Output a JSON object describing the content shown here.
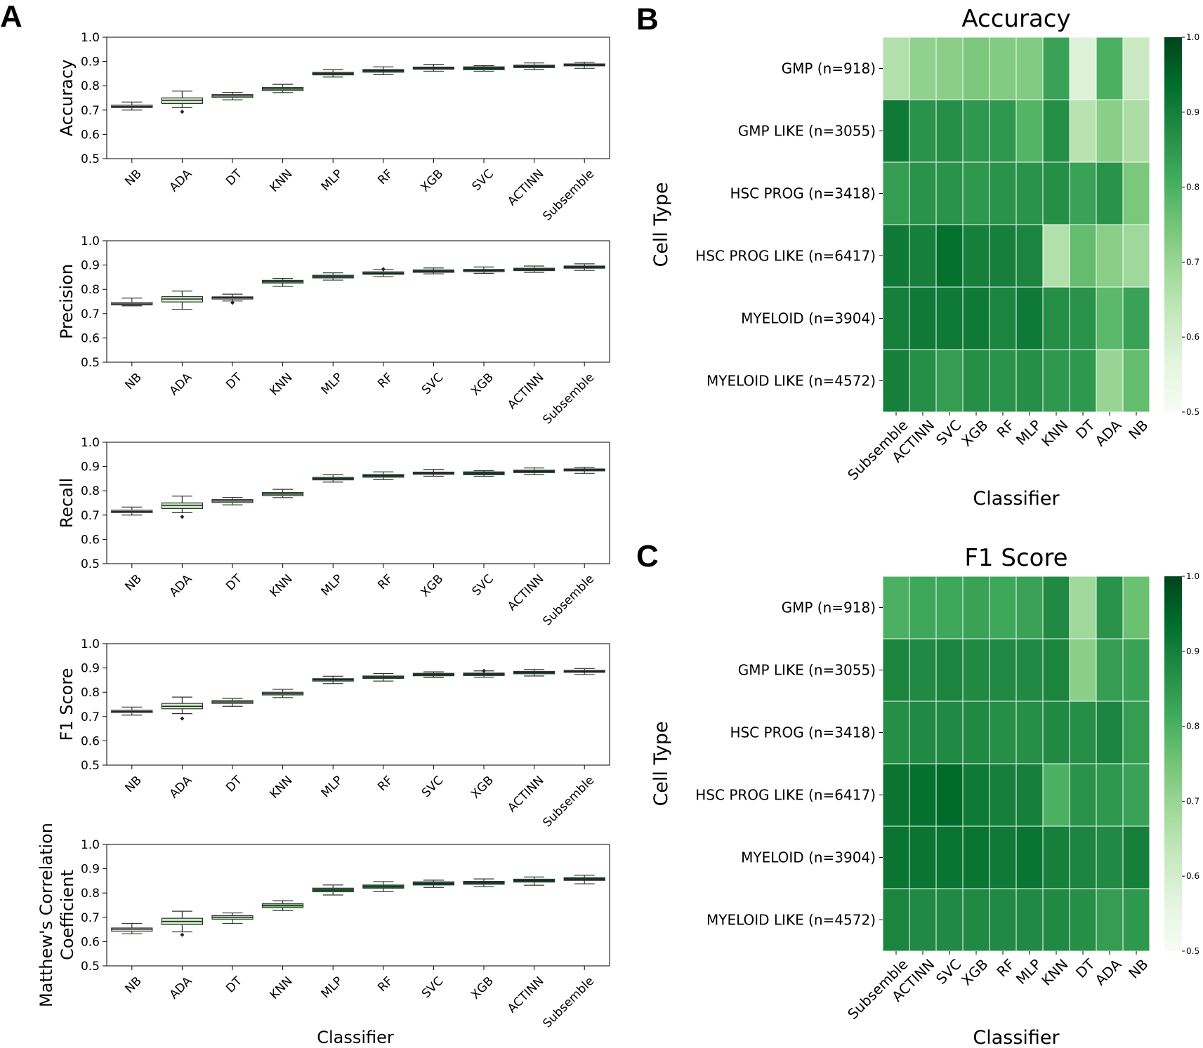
{
  "panel_labels": {
    "a": "A",
    "b": "B",
    "c": "C"
  },
  "colors": {
    "cmap_low": "#f7fcf5",
    "cmap_high": "#00441b",
    "box_edge": "#333333"
  },
  "chart_data": [
    {
      "type": "box",
      "ylabel": "Accuracy",
      "ylim": [
        0.5,
        1.0
      ],
      "yticks": [
        "0.5",
        "0.6",
        "0.7",
        "0.8",
        "0.9",
        "1.0"
      ],
      "categories": [
        "NB",
        "ADA",
        "DT",
        "KNN",
        "MLP",
        "RF",
        "XGB",
        "SVC",
        "ACTINN",
        "Subsemble"
      ],
      "medians": [
        0.715,
        0.74,
        0.758,
        0.787,
        0.85,
        0.862,
        0.873,
        0.873,
        0.88,
        0.886
      ],
      "q1": [
        0.71,
        0.727,
        0.752,
        0.78,
        0.845,
        0.856,
        0.868,
        0.866,
        0.875,
        0.882
      ],
      "q3": [
        0.72,
        0.75,
        0.764,
        0.793,
        0.855,
        0.867,
        0.877,
        0.878,
        0.885,
        0.89
      ],
      "whisker_low": [
        0.7,
        0.71,
        0.742,
        0.772,
        0.836,
        0.846,
        0.86,
        0.86,
        0.866,
        0.872
      ],
      "whisker_high": [
        0.733,
        0.778,
        0.773,
        0.806,
        0.866,
        0.878,
        0.888,
        0.883,
        0.894,
        0.897
      ],
      "outliers": [
        [],
        [
          0.693
        ],
        [],
        [],
        [],
        [],
        [],
        [],
        [],
        []
      ]
    },
    {
      "type": "box",
      "ylabel": "Precision",
      "ylim": [
        0.5,
        1.0
      ],
      "yticks": [
        "0.5",
        "0.6",
        "0.7",
        "0.8",
        "0.9",
        "1.0"
      ],
      "categories": [
        "NB",
        "ADA",
        "DT",
        "KNN",
        "MLP",
        "RF",
        "SVC",
        "XGB",
        "ACTINN",
        "Subsemble"
      ],
      "medians": [
        0.74,
        0.76,
        0.765,
        0.832,
        0.852,
        0.866,
        0.875,
        0.878,
        0.882,
        0.892
      ],
      "q1": [
        0.736,
        0.748,
        0.76,
        0.826,
        0.847,
        0.862,
        0.87,
        0.873,
        0.877,
        0.887
      ],
      "q3": [
        0.746,
        0.77,
        0.769,
        0.837,
        0.858,
        0.872,
        0.88,
        0.882,
        0.887,
        0.896
      ],
      "whisker_low": [
        0.732,
        0.718,
        0.752,
        0.812,
        0.838,
        0.852,
        0.864,
        0.866,
        0.87,
        0.878
      ],
      "whisker_high": [
        0.764,
        0.793,
        0.78,
        0.845,
        0.868,
        0.882,
        0.888,
        0.892,
        0.896,
        0.905
      ],
      "outliers": [
        [],
        [],
        [
          0.745
        ],
        [],
        [],
        [
          0.883
        ],
        [],
        [],
        [],
        []
      ]
    },
    {
      "type": "box",
      "ylabel": "Recall",
      "ylim": [
        0.5,
        1.0
      ],
      "yticks": [
        "0.5",
        "0.6",
        "0.7",
        "0.8",
        "0.9",
        "1.0"
      ],
      "categories": [
        "NB",
        "ADA",
        "DT",
        "KNN",
        "MLP",
        "RF",
        "XGB",
        "SVC",
        "ACTINN",
        "Subsemble"
      ],
      "medians": [
        0.715,
        0.74,
        0.758,
        0.787,
        0.85,
        0.862,
        0.873,
        0.873,
        0.88,
        0.886
      ],
      "q1": [
        0.71,
        0.727,
        0.752,
        0.78,
        0.845,
        0.856,
        0.868,
        0.866,
        0.875,
        0.882
      ],
      "q3": [
        0.72,
        0.75,
        0.764,
        0.793,
        0.855,
        0.867,
        0.877,
        0.878,
        0.885,
        0.89
      ],
      "whisker_low": [
        0.7,
        0.71,
        0.742,
        0.772,
        0.836,
        0.846,
        0.86,
        0.86,
        0.866,
        0.872
      ],
      "whisker_high": [
        0.733,
        0.778,
        0.773,
        0.806,
        0.866,
        0.878,
        0.888,
        0.883,
        0.894,
        0.897
      ],
      "outliers": [
        [],
        [
          0.693
        ],
        [],
        [],
        [],
        [],
        [],
        [],
        [],
        []
      ]
    },
    {
      "type": "box",
      "ylabel": "F1 Score",
      "ylim": [
        0.5,
        1.0
      ],
      "yticks": [
        "0.5",
        "0.6",
        "0.7",
        "0.8",
        "0.9",
        "1.0"
      ],
      "categories": [
        "NB",
        "ADA",
        "DT",
        "KNN",
        "MLP",
        "RF",
        "SVC",
        "XGB",
        "ACTINN",
        "Subsemble"
      ],
      "medians": [
        0.721,
        0.742,
        0.76,
        0.795,
        0.852,
        0.862,
        0.873,
        0.875,
        0.881,
        0.886
      ],
      "q1": [
        0.716,
        0.732,
        0.754,
        0.789,
        0.846,
        0.857,
        0.868,
        0.869,
        0.876,
        0.882
      ],
      "q3": [
        0.726,
        0.754,
        0.766,
        0.8,
        0.856,
        0.867,
        0.878,
        0.879,
        0.886,
        0.89
      ],
      "whisker_low": [
        0.706,
        0.712,
        0.742,
        0.778,
        0.836,
        0.846,
        0.861,
        0.862,
        0.867,
        0.873
      ],
      "whisker_high": [
        0.739,
        0.78,
        0.775,
        0.812,
        0.866,
        0.877,
        0.884,
        0.888,
        0.894,
        0.898
      ],
      "outliers": [
        [],
        [
          0.692
        ],
        [],
        [],
        [],
        [],
        [],
        [
          0.888
        ],
        [],
        []
      ]
    },
    {
      "type": "box",
      "ylabel_lines": [
        "Matthew's Correlation",
        "Coefficient"
      ],
      "xlabel": "Classifier",
      "ylim": [
        0.5,
        1.0
      ],
      "yticks": [
        "0.5",
        "0.6",
        "0.7",
        "0.8",
        "0.9",
        "1.0"
      ],
      "categories": [
        "NB",
        "ADA",
        "DT",
        "KNN",
        "MLP",
        "RF",
        "SVC",
        "XGB",
        "ACTINN",
        "Subsemble"
      ],
      "medians": [
        0.651,
        0.683,
        0.7,
        0.748,
        0.812,
        0.826,
        0.839,
        0.842,
        0.851,
        0.858
      ],
      "q1": [
        0.643,
        0.67,
        0.692,
        0.74,
        0.805,
        0.82,
        0.833,
        0.836,
        0.845,
        0.852
      ],
      "q3": [
        0.656,
        0.696,
        0.707,
        0.756,
        0.82,
        0.833,
        0.846,
        0.848,
        0.857,
        0.863
      ],
      "whisker_low": [
        0.632,
        0.64,
        0.675,
        0.728,
        0.792,
        0.806,
        0.823,
        0.826,
        0.832,
        0.838
      ],
      "whisker_high": [
        0.675,
        0.725,
        0.718,
        0.768,
        0.833,
        0.847,
        0.853,
        0.858,
        0.866,
        0.873
      ],
      "outliers": [
        [],
        [
          0.628
        ],
        [],
        [],
        [],
        [],
        [],
        [],
        [],
        []
      ]
    },
    {
      "type": "heatmap",
      "title": "Accuracy",
      "xlabel": "Classifier",
      "ylabel": "Cell Type",
      "x": [
        "Subsemble",
        "ACTINN",
        "SVC",
        "XGB",
        "RF",
        "MLP",
        "KNN",
        "DT",
        "ADA",
        "NB"
      ],
      "y": [
        "GMP (n=918)",
        "GMP LIKE (n=3055)",
        "HSC PROG (n=3418)",
        "HSC PROG LIKE (n=6417)",
        "MYELOID (n=3904)",
        "MYELOID LIKE (n=4572)"
      ],
      "values": [
        [
          0.66,
          0.71,
          0.72,
          0.74,
          0.73,
          0.73,
          0.83,
          0.58,
          0.8,
          0.62
        ],
        [
          0.91,
          0.86,
          0.87,
          0.85,
          0.85,
          0.79,
          0.87,
          0.65,
          0.72,
          0.67
        ],
        [
          0.84,
          0.86,
          0.86,
          0.85,
          0.86,
          0.86,
          0.87,
          0.83,
          0.86,
          0.74
        ],
        [
          0.91,
          0.9,
          0.93,
          0.9,
          0.9,
          0.89,
          0.66,
          0.77,
          0.72,
          0.69
        ],
        [
          0.9,
          0.91,
          0.91,
          0.91,
          0.89,
          0.91,
          0.87,
          0.86,
          0.78,
          0.83
        ],
        [
          0.9,
          0.87,
          0.84,
          0.87,
          0.86,
          0.87,
          0.85,
          0.85,
          0.7,
          0.77
        ]
      ],
      "vmin": 0.5,
      "vmax": 1.0,
      "colorbar_ticks": [
        "0.5",
        "0.6",
        "0.7",
        "0.8",
        "0.9",
        "1.0"
      ]
    },
    {
      "type": "heatmap",
      "title": "F1 Score",
      "xlabel": "Classifier",
      "ylabel": "Cell Type",
      "x": [
        "Subsemble",
        "ACTINN",
        "SVC",
        "XGB",
        "RF",
        "MLP",
        "KNN",
        "DT",
        "ADA",
        "NB"
      ],
      "y": [
        "GMP (n=918)",
        "GMP LIKE (n=3055)",
        "HSC PROG (n=3418)",
        "HSC PROG LIKE (n=6417)",
        "MYELOID (n=3904)",
        "MYELOID LIKE (n=4572)"
      ],
      "values": [
        [
          0.8,
          0.82,
          0.82,
          0.83,
          0.82,
          0.83,
          0.88,
          0.69,
          0.86,
          0.76
        ],
        [
          0.89,
          0.88,
          0.89,
          0.88,
          0.88,
          0.88,
          0.89,
          0.72,
          0.84,
          0.83
        ],
        [
          0.87,
          0.88,
          0.88,
          0.88,
          0.87,
          0.87,
          0.88,
          0.87,
          0.89,
          0.84
        ],
        [
          0.92,
          0.93,
          0.94,
          0.91,
          0.9,
          0.9,
          0.8,
          0.86,
          0.85,
          0.83
        ],
        [
          0.92,
          0.92,
          0.92,
          0.92,
          0.91,
          0.92,
          0.9,
          0.89,
          0.88,
          0.9
        ],
        [
          0.89,
          0.88,
          0.88,
          0.88,
          0.88,
          0.88,
          0.88,
          0.87,
          0.84,
          0.85
        ]
      ],
      "vmin": 0.5,
      "vmax": 1.0,
      "colorbar_ticks": [
        "0.5",
        "0.6",
        "0.7",
        "0.8",
        "0.9",
        "1.0"
      ]
    }
  ]
}
